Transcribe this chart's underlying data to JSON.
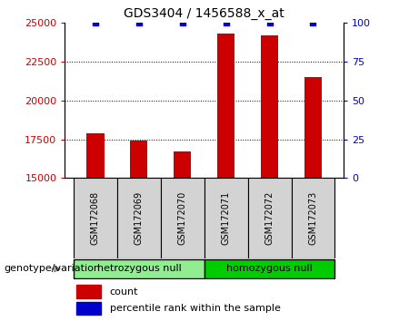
{
  "title": "GDS3404 / 1456588_x_at",
  "samples": [
    "GSM172068",
    "GSM172069",
    "GSM172070",
    "GSM172071",
    "GSM172072",
    "GSM172073"
  ],
  "counts": [
    17900,
    17400,
    16700,
    24300,
    24200,
    21500
  ],
  "percentile_ranks": [
    100,
    100,
    100,
    100,
    100,
    100
  ],
  "ylim_left": [
    15000,
    25000
  ],
  "ylim_right": [
    0,
    100
  ],
  "yticks_left": [
    15000,
    17500,
    20000,
    22500,
    25000
  ],
  "yticks_right": [
    0,
    25,
    50,
    75,
    100
  ],
  "bar_color": "#cc0000",
  "percentile_color": "#0000cc",
  "bar_width": 0.4,
  "groups": [
    {
      "label": "hetrozygous null",
      "indices": [
        0,
        1,
        2
      ],
      "color": "#90ee90"
    },
    {
      "label": "homozygous null",
      "indices": [
        3,
        4,
        5
      ],
      "color": "#00cc00"
    }
  ],
  "group_label": "genotype/variation",
  "legend_count_label": "count",
  "legend_percentile_label": "percentile rank within the sample",
  "tick_color_left": "#cc0000",
  "tick_color_right": "#0000cc",
  "grid_color": "#000000",
  "label_box_color": "#d3d3d3",
  "label_box_edgecolor": "#000000"
}
